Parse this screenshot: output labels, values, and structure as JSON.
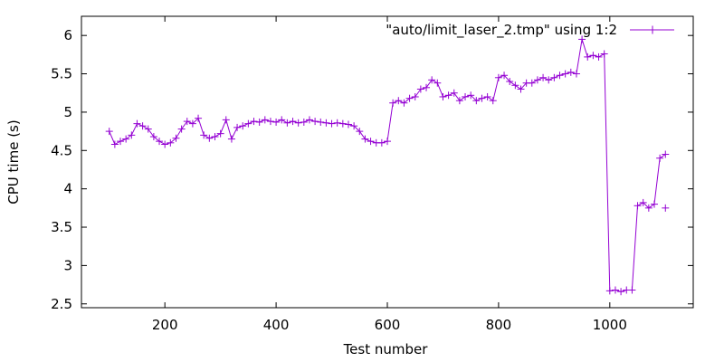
{
  "chart_data": {
    "type": "line",
    "title": "",
    "xlabel": "Test number",
    "ylabel": "CPU time (s)",
    "xlim": [
      50,
      1150
    ],
    "ylim": [
      2.45,
      6.25
    ],
    "xticks": [
      200,
      400,
      600,
      800,
      1000
    ],
    "yticks": [
      2.5,
      3,
      3.5,
      4,
      4.5,
      5,
      5.5,
      6
    ],
    "grid": false,
    "legend_position": "top-right",
    "series": [
      {
        "name": "\"auto/limit_laser_2.tmp\" using 1:2",
        "color": "#9400d3",
        "marker": "plus",
        "x": [
          100,
          110,
          120,
          130,
          140,
          150,
          160,
          170,
          180,
          190,
          200,
          210,
          220,
          230,
          240,
          250,
          260,
          270,
          280,
          290,
          300,
          310,
          320,
          330,
          340,
          350,
          360,
          370,
          380,
          390,
          400,
          410,
          420,
          430,
          440,
          450,
          460,
          470,
          480,
          490,
          500,
          510,
          520,
          530,
          540,
          550,
          560,
          570,
          580,
          590,
          600,
          610,
          620,
          630,
          640,
          650,
          660,
          670,
          680,
          690,
          700,
          710,
          720,
          730,
          740,
          750,
          760,
          770,
          780,
          790,
          800,
          810,
          820,
          830,
          840,
          850,
          860,
          870,
          880,
          890,
          900,
          910,
          920,
          930,
          940,
          950,
          960,
          970,
          980,
          990,
          1000,
          1010,
          1020,
          1030,
          1040,
          1050,
          1060,
          1070,
          1080,
          1090,
          1100
        ],
        "values": [
          4.75,
          4.58,
          4.62,
          4.65,
          4.7,
          4.85,
          4.82,
          4.78,
          4.68,
          4.62,
          4.58,
          4.6,
          4.66,
          4.78,
          4.88,
          4.85,
          4.92,
          4.7,
          4.66,
          4.68,
          4.72,
          4.9,
          4.65,
          4.8,
          4.82,
          4.85,
          4.88,
          4.87,
          4.9,
          4.88,
          4.87,
          4.9,
          4.86,
          4.88,
          4.86,
          4.87,
          4.9,
          4.88,
          4.87,
          4.86,
          4.85,
          4.86,
          4.85,
          4.84,
          4.82,
          4.75,
          4.65,
          4.62,
          4.6,
          4.6,
          4.62,
          5.12,
          5.15,
          5.12,
          5.18,
          5.2,
          5.3,
          5.32,
          5.42,
          5.38,
          5.2,
          5.22,
          5.25,
          5.15,
          5.2,
          5.22,
          5.15,
          5.18,
          5.2,
          5.15,
          5.45,
          5.48,
          5.4,
          5.35,
          5.3,
          5.38,
          5.38,
          5.42,
          5.45,
          5.42,
          5.45,
          5.48,
          5.5,
          5.52,
          5.5,
          5.95,
          5.72,
          5.74,
          5.72,
          5.76,
          2.67,
          2.68,
          2.66,
          2.68,
          2.68,
          3.78,
          3.82,
          3.75,
          3.8,
          4.4,
          4.45
        ]
      },
      {
        "name": "",
        "color": "#9400d3",
        "marker": "plus",
        "x": [
          1100
        ],
        "values": [
          3.75
        ]
      }
    ]
  }
}
